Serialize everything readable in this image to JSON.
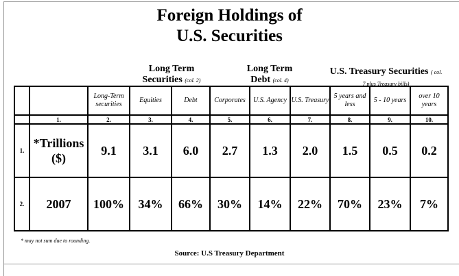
{
  "title": [
    "Foreign Holdings of",
    "U.S. Securities"
  ],
  "group_headers": [
    {
      "title": "Long Term Securities",
      "note": "(col. 2)"
    },
    {
      "title": "Long Term Debt",
      "note": "(col. 4)"
    },
    {
      "title": "U.S. Treasury Securities",
      "note": "( col. 7 plus Treasury bills)"
    }
  ],
  "table": {
    "header": [
      "Long-Term securities",
      "Equities",
      "Debt",
      "Corporates",
      "U.S. Agency",
      "U.S. Treasury",
      "5 years and less",
      "5 - 10 years",
      "over 10 years"
    ],
    "column_numbers": [
      "1.",
      "2.",
      "3.",
      "4.",
      "5.",
      "6.",
      "7.",
      "8.",
      "9.",
      "10."
    ],
    "rows": [
      [
        "1.",
        "*Trillions ($)",
        "9.1",
        "3.1",
        "6.0",
        "2.7",
        "1.3",
        "2.0",
        "1.5",
        "0.5",
        "0.2"
      ],
      [
        "2.",
        "2007",
        "100%",
        "34%",
        "66%",
        "30%",
        "14%",
        "22%",
        "70%",
        "23%",
        "7%"
      ]
    ]
  },
  "footnote": "* may not sum due to rounding.",
  "source": "Source: U.S Treasury Department"
}
